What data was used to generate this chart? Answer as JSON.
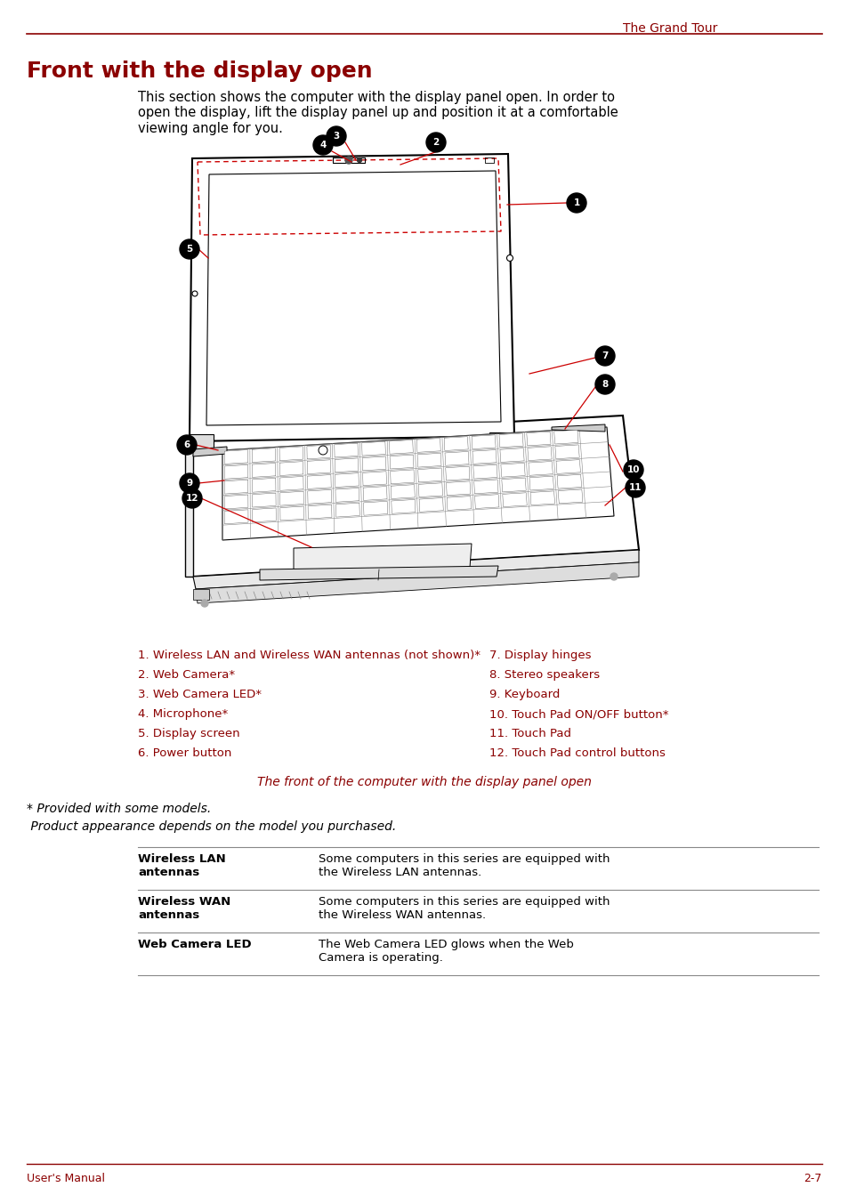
{
  "page_color": "#ffffff",
  "header_text": "The Grand Tour",
  "header_color": "#8b0000",
  "header_line_color": "#8b0000",
  "title": "Front with the display open",
  "title_color": "#8b0000",
  "title_fontsize": 18,
  "intro_text": "This section shows the computer with the display panel open. In order to\nopen the display, lift the display panel up and position it at a comfortable\nviewing angle for you.",
  "intro_color": "#000000",
  "intro_fontsize": 10.5,
  "items_left": [
    "1. Wireless LAN and Wireless WAN antennas (not shown)*",
    "2. Web Camera*",
    "3. Web Camera LED*",
    "4. Microphone*",
    "5. Display screen",
    "6. Power button"
  ],
  "items_right": [
    "7. Display hinges",
    "8. Stereo speakers",
    "9. Keyboard",
    "10. Touch Pad ON/OFF button*",
    "11. Touch Pad",
    "12. Touch Pad control buttons"
  ],
  "items_color": "#8b0000",
  "items_fontsize": 9.5,
  "caption": "The front of the computer with the display panel open",
  "caption_color": "#8b0000",
  "caption_fontsize": 10,
  "note1": "* Provided with some models.",
  "note2": " Product appearance depends on the model you purchased.",
  "notes_color": "#000000",
  "notes_fontsize": 10,
  "table_rows": [
    {
      "col1": "Wireless LAN\nantennas",
      "col2": "Some computers in this series are equipped with\nthe Wireless LAN antennas."
    },
    {
      "col1": "Wireless WAN\nantennas",
      "col2": "Some computers in this series are equipped with\nthe Wireless WAN antennas."
    },
    {
      "col1": "Web Camera LED",
      "col2": "The Web Camera LED glows when the Web\nCamera is operating."
    }
  ],
  "table_col1_fontsize": 9.5,
  "table_col2_fontsize": 9.5,
  "table_line_color": "#888888",
  "footer_left": "User's Manual",
  "footer_right": "2-7",
  "footer_color": "#8b0000",
  "footer_line_color": "#8b0000",
  "footer_fontsize": 9
}
